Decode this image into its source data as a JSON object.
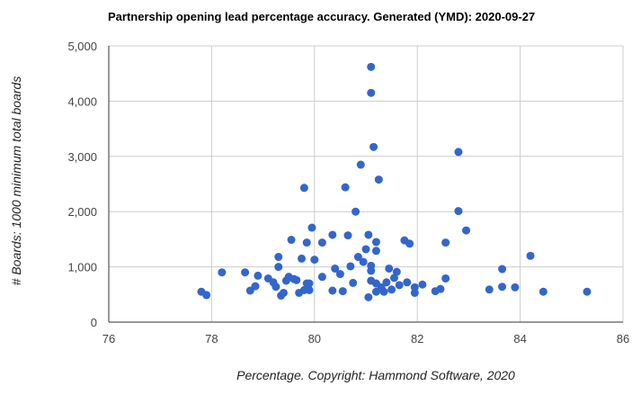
{
  "chart_data": {
    "type": "scatter",
    "title": "Partnership opening lead percentage accuracy. Generated (YMD): 2020-09-27",
    "xlabel": "Percentage. Copyright: Hammond Software, 2020",
    "ylabel": "# Boards: 1000 minimum total boards",
    "xlim": [
      76,
      86
    ],
    "ylim": [
      0,
      5000
    ],
    "x_ticks": [
      {
        "value": 76,
        "label": "76"
      },
      {
        "value": 78,
        "label": "78"
      },
      {
        "value": 80,
        "label": "80"
      },
      {
        "value": 82,
        "label": "82"
      },
      {
        "value": 84,
        "label": "84"
      },
      {
        "value": 86,
        "label": "86"
      }
    ],
    "y_ticks": [
      {
        "value": 0,
        "label": "0"
      },
      {
        "value": 1000,
        "label": "1,000"
      },
      {
        "value": 2000,
        "label": "2,000"
      },
      {
        "value": 3000,
        "label": "3,000"
      },
      {
        "value": 4000,
        "label": "4,000"
      },
      {
        "value": 5000,
        "label": "5,000"
      }
    ],
    "grid": true,
    "legend": "none",
    "color": "#3366cc",
    "series": [
      {
        "points": [
          {
            "x": 77.8,
            "y": 550
          },
          {
            "x": 77.9,
            "y": 490
          },
          {
            "x": 78.2,
            "y": 900
          },
          {
            "x": 78.65,
            "y": 900
          },
          {
            "x": 78.75,
            "y": 570
          },
          {
            "x": 78.85,
            "y": 650
          },
          {
            "x": 78.9,
            "y": 840
          },
          {
            "x": 79.1,
            "y": 790
          },
          {
            "x": 79.2,
            "y": 720
          },
          {
            "x": 79.25,
            "y": 640
          },
          {
            "x": 79.3,
            "y": 1180
          },
          {
            "x": 79.3,
            "y": 1000
          },
          {
            "x": 79.35,
            "y": 480
          },
          {
            "x": 79.4,
            "y": 530
          },
          {
            "x": 79.45,
            "y": 750
          },
          {
            "x": 79.5,
            "y": 820
          },
          {
            "x": 79.55,
            "y": 1490
          },
          {
            "x": 79.6,
            "y": 780
          },
          {
            "x": 79.65,
            "y": 760
          },
          {
            "x": 79.7,
            "y": 530
          },
          {
            "x": 79.75,
            "y": 1150
          },
          {
            "x": 79.8,
            "y": 580
          },
          {
            "x": 79.8,
            "y": 2430
          },
          {
            "x": 79.85,
            "y": 1440
          },
          {
            "x": 79.85,
            "y": 700
          },
          {
            "x": 79.9,
            "y": 580
          },
          {
            "x": 79.9,
            "y": 700
          },
          {
            "x": 79.95,
            "y": 1710
          },
          {
            "x": 80.0,
            "y": 1130
          },
          {
            "x": 80.15,
            "y": 1440
          },
          {
            "x": 80.15,
            "y": 820
          },
          {
            "x": 80.35,
            "y": 1580
          },
          {
            "x": 80.35,
            "y": 570
          },
          {
            "x": 80.4,
            "y": 970
          },
          {
            "x": 80.5,
            "y": 870
          },
          {
            "x": 80.55,
            "y": 560
          },
          {
            "x": 80.6,
            "y": 2440
          },
          {
            "x": 80.65,
            "y": 1570
          },
          {
            "x": 80.7,
            "y": 1010
          },
          {
            "x": 80.75,
            "y": 710
          },
          {
            "x": 80.8,
            "y": 2000
          },
          {
            "x": 80.85,
            "y": 1180
          },
          {
            "x": 80.9,
            "y": 2850
          },
          {
            "x": 80.95,
            "y": 1090
          },
          {
            "x": 81.0,
            "y": 1320
          },
          {
            "x": 81.05,
            "y": 450
          },
          {
            "x": 81.05,
            "y": 1580
          },
          {
            "x": 81.1,
            "y": 1020
          },
          {
            "x": 81.1,
            "y": 930
          },
          {
            "x": 81.1,
            "y": 750
          },
          {
            "x": 81.1,
            "y": 4620
          },
          {
            "x": 81.1,
            "y": 4150
          },
          {
            "x": 81.15,
            "y": 3170
          },
          {
            "x": 81.2,
            "y": 1450
          },
          {
            "x": 81.2,
            "y": 1290
          },
          {
            "x": 81.2,
            "y": 550
          },
          {
            "x": 81.2,
            "y": 700
          },
          {
            "x": 81.25,
            "y": 2580
          },
          {
            "x": 81.3,
            "y": 630
          },
          {
            "x": 81.35,
            "y": 550
          },
          {
            "x": 81.4,
            "y": 720
          },
          {
            "x": 81.45,
            "y": 970
          },
          {
            "x": 81.5,
            "y": 590
          },
          {
            "x": 81.55,
            "y": 800
          },
          {
            "x": 81.6,
            "y": 910
          },
          {
            "x": 81.65,
            "y": 670
          },
          {
            "x": 81.75,
            "y": 1480
          },
          {
            "x": 81.8,
            "y": 720
          },
          {
            "x": 81.85,
            "y": 1420
          },
          {
            "x": 81.95,
            "y": 530
          },
          {
            "x": 81.95,
            "y": 630
          },
          {
            "x": 82.1,
            "y": 680
          },
          {
            "x": 82.35,
            "y": 560
          },
          {
            "x": 82.45,
            "y": 600
          },
          {
            "x": 82.55,
            "y": 790
          },
          {
            "x": 82.55,
            "y": 1440
          },
          {
            "x": 82.8,
            "y": 3080
          },
          {
            "x": 82.8,
            "y": 2010
          },
          {
            "x": 82.95,
            "y": 1660
          },
          {
            "x": 83.4,
            "y": 590
          },
          {
            "x": 83.65,
            "y": 640
          },
          {
            "x": 83.65,
            "y": 960
          },
          {
            "x": 83.9,
            "y": 630
          },
          {
            "x": 84.2,
            "y": 1200
          },
          {
            "x": 84.45,
            "y": 550
          },
          {
            "x": 85.3,
            "y": 550
          }
        ]
      }
    ]
  }
}
